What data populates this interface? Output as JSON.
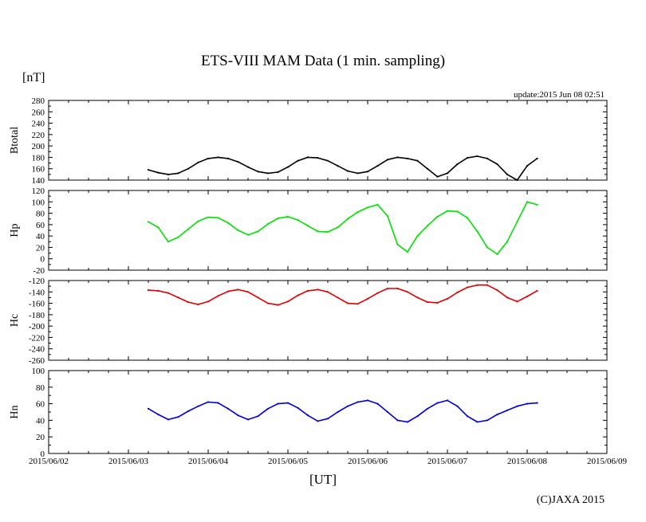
{
  "title": "ETS-VIII MAM Data (1 min. sampling)",
  "unit_label": "[nT]",
  "update_text": "update:2015 Jun 08 02:51",
  "xlabel": "[UT]",
  "copyright": "(C)JAXA 2015",
  "chart_data": {
    "type": "line",
    "x_axis": {
      "ticks": [
        "2015/06/02",
        "2015/06/03",
        "2015/06/04",
        "2015/06/05",
        "2015/06/06",
        "2015/06/07",
        "2015/06/08",
        "2015/06/09"
      ],
      "range": [
        "2015/06/02 00:00",
        "2015/06/09 00:00"
      ]
    },
    "panels": [
      {
        "ylabel": "Btotal",
        "color": "#000000",
        "ylim": [
          140,
          280
        ],
        "yticks": [
          140,
          160,
          180,
          200,
          220,
          240,
          260,
          280
        ],
        "x": [
          "2015/06/03 06:00",
          "2015/06/03 09:00",
          "2015/06/03 12:00",
          "2015/06/03 15:00",
          "2015/06/03 18:00",
          "2015/06/03 21:00",
          "2015/06/04 00:00",
          "2015/06/04 03:00",
          "2015/06/04 06:00",
          "2015/06/04 09:00",
          "2015/06/04 12:00",
          "2015/06/04 15:00",
          "2015/06/04 18:00",
          "2015/06/04 21:00",
          "2015/06/05 00:00",
          "2015/06/05 03:00",
          "2015/06/05 06:00",
          "2015/06/05 09:00",
          "2015/06/05 12:00",
          "2015/06/05 15:00",
          "2015/06/05 18:00",
          "2015/06/05 21:00",
          "2015/06/06 00:00",
          "2015/06/06 03:00",
          "2015/06/06 06:00",
          "2015/06/06 09:00",
          "2015/06/06 12:00",
          "2015/06/06 15:00",
          "2015/06/06 18:00",
          "2015/06/06 21:00",
          "2015/06/07 00:00",
          "2015/06/07 03:00",
          "2015/06/07 06:00",
          "2015/06/07 09:00",
          "2015/06/07 12:00",
          "2015/06/07 15:00",
          "2015/06/07 18:00",
          "2015/06/07 21:00",
          "2015/06/08 00:00",
          "2015/06/08 03:00"
        ],
        "values": [
          158,
          153,
          150,
          152,
          160,
          171,
          178,
          180,
          178,
          172,
          163,
          155,
          152,
          154,
          163,
          174,
          180,
          179,
          174,
          165,
          156,
          152,
          155,
          165,
          176,
          180,
          178,
          174,
          160,
          146,
          152,
          168,
          179,
          182,
          178,
          168,
          150,
          140,
          165,
          178
        ]
      },
      {
        "ylabel": "Hp",
        "color": "#00e000",
        "ylim": [
          -20,
          120
        ],
        "yticks": [
          -20,
          0,
          20,
          40,
          60,
          80,
          100,
          120
        ],
        "x": [
          "2015/06/03 06:00",
          "2015/06/03 09:00",
          "2015/06/03 12:00",
          "2015/06/03 15:00",
          "2015/06/03 18:00",
          "2015/06/03 21:00",
          "2015/06/04 00:00",
          "2015/06/04 03:00",
          "2015/06/04 06:00",
          "2015/06/04 09:00",
          "2015/06/04 12:00",
          "2015/06/04 15:00",
          "2015/06/04 18:00",
          "2015/06/04 21:00",
          "2015/06/05 00:00",
          "2015/06/05 03:00",
          "2015/06/05 06:00",
          "2015/06/05 09:00",
          "2015/06/05 12:00",
          "2015/06/05 15:00",
          "2015/06/05 18:00",
          "2015/06/05 21:00",
          "2015/06/06 00:00",
          "2015/06/06 03:00",
          "2015/06/06 06:00",
          "2015/06/06 09:00",
          "2015/06/06 12:00",
          "2015/06/06 15:00",
          "2015/06/06 18:00",
          "2015/06/06 21:00",
          "2015/06/07 00:00",
          "2015/06/07 03:00",
          "2015/06/07 06:00",
          "2015/06/07 09:00",
          "2015/06/07 12:00",
          "2015/06/07 15:00",
          "2015/06/07 18:00",
          "2015/06/07 21:00",
          "2015/06/08 00:00",
          "2015/06/08 03:00"
        ],
        "values": [
          65,
          55,
          30,
          38,
          52,
          66,
          73,
          72,
          63,
          50,
          42,
          48,
          61,
          71,
          74,
          68,
          58,
          48,
          47,
          55,
          70,
          82,
          90,
          95,
          75,
          25,
          12,
          40,
          58,
          74,
          84,
          83,
          72,
          48,
          20,
          8,
          30,
          65,
          100,
          95
        ]
      },
      {
        "ylabel": "Hc",
        "color": "#e00000",
        "ylim": [
          -260,
          -120
        ],
        "yticks": [
          -260,
          -240,
          -220,
          -200,
          -180,
          -160,
          -140,
          -120
        ],
        "x": [
          "2015/06/03 06:00",
          "2015/06/03 09:00",
          "2015/06/03 12:00",
          "2015/06/03 15:00",
          "2015/06/03 18:00",
          "2015/06/03 21:00",
          "2015/06/04 00:00",
          "2015/06/04 03:00",
          "2015/06/04 06:00",
          "2015/06/04 09:00",
          "2015/06/04 12:00",
          "2015/06/04 15:00",
          "2015/06/04 18:00",
          "2015/06/04 21:00",
          "2015/06/05 00:00",
          "2015/06/05 03:00",
          "2015/06/05 06:00",
          "2015/06/05 09:00",
          "2015/06/05 12:00",
          "2015/06/05 15:00",
          "2015/06/05 18:00",
          "2015/06/05 21:00",
          "2015/06/06 00:00",
          "2015/06/06 03:00",
          "2015/06/06 06:00",
          "2015/06/06 09:00",
          "2015/06/06 12:00",
          "2015/06/06 15:00",
          "2015/06/06 18:00",
          "2015/06/06 21:00",
          "2015/06/07 00:00",
          "2015/06/07 03:00",
          "2015/06/07 06:00",
          "2015/06/07 09:00",
          "2015/06/07 12:00",
          "2015/06/07 15:00",
          "2015/06/07 18:00",
          "2015/06/07 21:00",
          "2015/06/08 00:00",
          "2015/06/08 03:00"
        ],
        "values": [
          -137,
          -138,
          -142,
          -150,
          -158,
          -162,
          -157,
          -147,
          -139,
          -136,
          -140,
          -150,
          -160,
          -163,
          -157,
          -146,
          -138,
          -136,
          -140,
          -150,
          -160,
          -161,
          -152,
          -142,
          -134,
          -134,
          -140,
          -150,
          -158,
          -159,
          -152,
          -141,
          -132,
          -128,
          -128,
          -137,
          -150,
          -157,
          -148,
          -138
        ]
      },
      {
        "ylabel": "Hn",
        "color": "#0000d8",
        "ylim": [
          0,
          100
        ],
        "yticks": [
          0,
          20,
          40,
          60,
          80,
          100
        ],
        "x": [
          "2015/06/03 06:00",
          "2015/06/03 09:00",
          "2015/06/03 12:00",
          "2015/06/03 15:00",
          "2015/06/03 18:00",
          "2015/06/03 21:00",
          "2015/06/04 00:00",
          "2015/06/04 03:00",
          "2015/06/04 06:00",
          "2015/06/04 09:00",
          "2015/06/04 12:00",
          "2015/06/04 15:00",
          "2015/06/04 18:00",
          "2015/06/04 21:00",
          "2015/06/05 00:00",
          "2015/06/05 03:00",
          "2015/06/05 06:00",
          "2015/06/05 09:00",
          "2015/06/05 12:00",
          "2015/06/05 15:00",
          "2015/06/05 18:00",
          "2015/06/05 21:00",
          "2015/06/06 00:00",
          "2015/06/06 03:00",
          "2015/06/06 06:00",
          "2015/06/06 09:00",
          "2015/06/06 12:00",
          "2015/06/06 15:00",
          "2015/06/06 18:00",
          "2015/06/06 21:00",
          "2015/06/07 00:00",
          "2015/06/07 03:00",
          "2015/06/07 06:00",
          "2015/06/07 09:00",
          "2015/06/07 12:00",
          "2015/06/07 15:00",
          "2015/06/07 18:00",
          "2015/06/07 21:00",
          "2015/06/08 00:00",
          "2015/06/08 03:00"
        ],
        "values": [
          54,
          47,
          41,
          44,
          51,
          57,
          62,
          61,
          54,
          46,
          41,
          45,
          54,
          60,
          61,
          55,
          46,
          39,
          42,
          50,
          57,
          62,
          64,
          60,
          50,
          40,
          38,
          45,
          54,
          61,
          64,
          57,
          45,
          38,
          40,
          47,
          52,
          57,
          60,
          61
        ]
      }
    ]
  }
}
